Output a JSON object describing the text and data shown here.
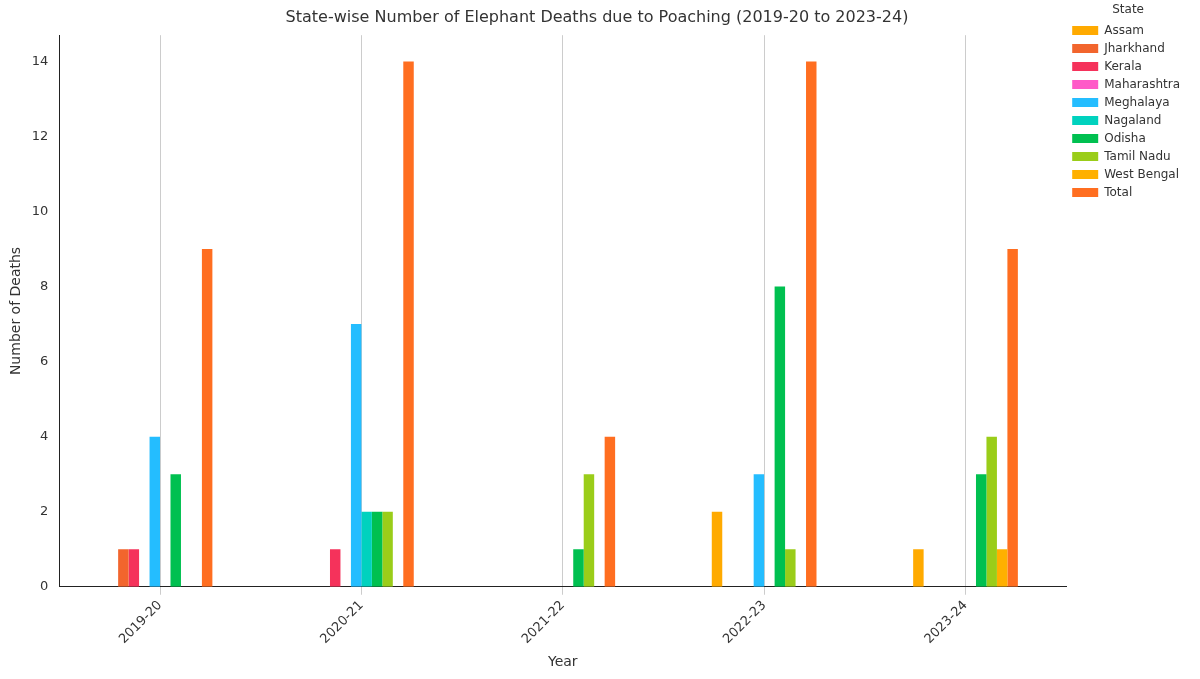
{
  "chart_data": {
    "type": "bar",
    "title": "State-wise Number of Elephant Deaths due to Poaching (2019-20 to 2023-24)",
    "xlabel": "Year",
    "ylabel": "Number of Deaths",
    "legend_title": "State",
    "categories": [
      "2019-20",
      "2020-21",
      "2021-22",
      "2022-23",
      "2023-24"
    ],
    "series": [
      {
        "name": "Assam",
        "color": "#ffaa00",
        "values": [
          0,
          0,
          0,
          2,
          1
        ]
      },
      {
        "name": "Jharkhand",
        "color": "#f2652d",
        "values": [
          1,
          0,
          0,
          0,
          0
        ]
      },
      {
        "name": "Kerala",
        "color": "#f5325b",
        "values": [
          1,
          1,
          0,
          0,
          0
        ]
      },
      {
        "name": "Maharashtra",
        "color": "#ff5ac8",
        "values": [
          0,
          0,
          0,
          0,
          0
        ]
      },
      {
        "name": "Meghalaya",
        "color": "#24bdff",
        "values": [
          4,
          7,
          0,
          3,
          0
        ]
      },
      {
        "name": "Nagaland",
        "color": "#00d2be",
        "values": [
          0,
          2,
          0,
          0,
          0
        ]
      },
      {
        "name": "Odisha",
        "color": "#00c050",
        "values": [
          3,
          2,
          1,
          8,
          3
        ]
      },
      {
        "name": "Tamil Nadu",
        "color": "#9acd19",
        "values": [
          0,
          2,
          3,
          1,
          4
        ]
      },
      {
        "name": "West Bengal",
        "color": "#ffb000",
        "values": [
          0,
          0,
          0,
          0,
          1
        ]
      },
      {
        "name": "Total",
        "color": "#ff6e20",
        "values": [
          9,
          14,
          4,
          14,
          9
        ]
      }
    ],
    "ylim": [
      0,
      14.7
    ],
    "yticks": [
      0,
      2,
      4,
      6,
      8,
      10,
      12,
      14
    ],
    "grid": "x",
    "legend": "top right"
  }
}
